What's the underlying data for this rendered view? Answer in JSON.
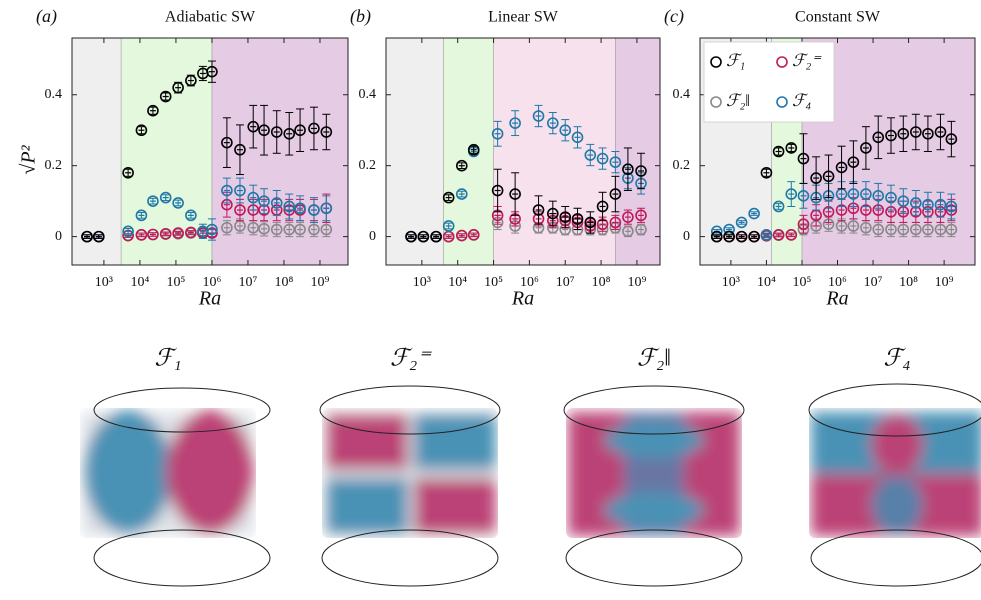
{
  "chart_data": [
    {
      "type": "scatter",
      "panel": "(a)",
      "title": "Adiabatic SW",
      "xlabel": "Ra",
      "ylabel": "√P²",
      "log_x": true,
      "xlim": [
        130,
        6000000000
      ],
      "ylim": [
        -0.08,
        0.56
      ],
      "xticks": [
        {
          "value": 1000,
          "label": "10³"
        },
        {
          "value": 10000,
          "label": "10⁴"
        },
        {
          "value": 100000,
          "label": "10⁵"
        },
        {
          "value": 1000000,
          "label": "10⁶"
        },
        {
          "value": 10000000,
          "label": "10⁷"
        },
        {
          "value": 100000000,
          "label": "10⁸"
        },
        {
          "value": 1000000000,
          "label": "10⁹"
        }
      ],
      "yticks": [
        0,
        0.2,
        0.4
      ],
      "regions": [
        {
          "from": 130,
          "to": 3000,
          "color": "#efefef"
        },
        {
          "from": 3000,
          "to": 1000000,
          "color": "#e3f8dc"
        },
        {
          "from": 1000000,
          "to": 6000000000,
          "color": "#e5cbe4"
        }
      ],
      "x": [
        340,
        720,
        4700,
        11000,
        23000,
        52000,
        115000,
        260000,
        560000,
        1000000,
        2600000,
        6000000,
        14000000,
        28000000,
        63000000,
        140000000,
        280000000,
        680000000,
        1500000000
      ],
      "series": [
        {
          "color": "#888888",
          "values": [
            0,
            0,
            0.003,
            0.005,
            0.006,
            0.007,
            0.008,
            0.01,
            0.01,
            0.01,
            0.025,
            0.03,
            0.025,
            0.022,
            0.02,
            0.02,
            0.02,
            0.02,
            0.02
          ],
          "errors": [
            0.005,
            0.005,
            0.005,
            0.005,
            0.005,
            0.005,
            0.005,
            0.005,
            0.008,
            0.01,
            0.02,
            0.02,
            0.02,
            0.02,
            0.02,
            0.02,
            0.02,
            0.02,
            0.02
          ]
        },
        {
          "color": "#c2185b",
          "values": [
            0,
            0,
            0.003,
            0.005,
            0.006,
            0.008,
            0.01,
            0.012,
            0.01,
            0.01,
            0.09,
            0.075,
            0.075,
            0.075,
            0.075,
            0.075,
            0.075,
            0.075,
            0.08
          ],
          "errors": [
            0.005,
            0.005,
            0.005,
            0.005,
            0.005,
            0.005,
            0.005,
            0.005,
            0.008,
            0.01,
            0.035,
            0.03,
            0.03,
            0.03,
            0.03,
            0.03,
            0.03,
            0.03,
            0.04
          ]
        },
        {
          "color": "#1f78a8",
          "values": [
            0,
            0,
            0.015,
            0.06,
            0.1,
            0.11,
            0.095,
            0.06,
            0.015,
            0.02,
            0.13,
            0.13,
            0.11,
            0.1,
            0.095,
            0.085,
            0.08,
            0.075,
            0.08
          ],
          "errors": [
            0.005,
            0.005,
            0.008,
            0.008,
            0.008,
            0.008,
            0.008,
            0.008,
            0.02,
            0.03,
            0.035,
            0.035,
            0.035,
            0.035,
            0.035,
            0.035,
            0.035,
            0.035,
            0.035
          ]
        },
        {
          "color": "#000000",
          "values": [
            0,
            0,
            0.18,
            0.3,
            0.355,
            0.395,
            0.42,
            0.44,
            0.46,
            0.465,
            0.265,
            0.245,
            0.31,
            0.3,
            0.295,
            0.29,
            0.3,
            0.305,
            0.295
          ],
          "errors": [
            0.005,
            0.005,
            0.01,
            0.01,
            0.01,
            0.01,
            0.015,
            0.015,
            0.02,
            0.03,
            0.07,
            0.07,
            0.06,
            0.07,
            0.06,
            0.06,
            0.06,
            0.06,
            0.05
          ]
        }
      ]
    },
    {
      "type": "scatter",
      "panel": "(b)",
      "title": "Linear SW",
      "xlabel": "Ra",
      "log_x": true,
      "xlim": [
        100,
        4400000000
      ],
      "ylim": [
        -0.08,
        0.56
      ],
      "xticks": [
        {
          "value": 1000,
          "label": "10³"
        },
        {
          "value": 10000,
          "label": "10⁴"
        },
        {
          "value": 100000,
          "label": "10⁵"
        },
        {
          "value": 1000000,
          "label": "10⁶"
        },
        {
          "value": 10000000,
          "label": "10⁷"
        },
        {
          "value": 100000000,
          "label": "10⁸"
        },
        {
          "value": 1000000000,
          "label": "10⁹"
        }
      ],
      "yticks": [
        0,
        0.2,
        0.4
      ],
      "regions": [
        {
          "from": 100,
          "to": 4000,
          "color": "#efefef"
        },
        {
          "from": 4000,
          "to": 100000,
          "color": "#e3f8dc"
        },
        {
          "from": 100000,
          "to": 250000000,
          "color": "#f6e1ec"
        },
        {
          "from": 250000000,
          "to": 4400000000,
          "color": "#e5cbe4"
        }
      ],
      "x": [
        500,
        1100,
        2500,
        5600,
        13000,
        28000,
        130000,
        400000,
        1800000,
        4500000,
        10000000,
        22000000,
        50000000,
        110000000,
        250000000,
        560000000,
        1300000000
      ],
      "series": [
        {
          "color": "#888888",
          "values": [
            0,
            0,
            0,
            0,
            0.003,
            0.005,
            0.04,
            0.03,
            0.025,
            0.025,
            0.02,
            0.02,
            0.02,
            0.02,
            0.025,
            0.015,
            0.02
          ],
          "errors": [
            0.005,
            0.005,
            0.005,
            0.005,
            0.005,
            0.005,
            0.02,
            0.02,
            0.015,
            0.015,
            0.015,
            0.015,
            0.015,
            0.015,
            0.015,
            0.015,
            0.015
          ]
        },
        {
          "color": "#c2185b",
          "values": [
            0,
            0,
            0,
            0,
            0.003,
            0.005,
            0.06,
            0.05,
            0.05,
            0.045,
            0.045,
            0.04,
            0.03,
            0.035,
            0.04,
            0.055,
            0.06
          ],
          "errors": [
            0.005,
            0.005,
            0.005,
            0.005,
            0.005,
            0.005,
            0.025,
            0.02,
            0.02,
            0.02,
            0.02,
            0.02,
            0.02,
            0.02,
            0.02,
            0.02,
            0.02
          ]
        },
        {
          "color": "#1f78a8",
          "values": [
            0,
            0,
            0,
            0.03,
            0.12,
            0.24,
            0.29,
            0.32,
            0.34,
            0.32,
            0.3,
            0.28,
            0.23,
            0.22,
            0.21,
            0.165,
            0.15
          ],
          "errors": [
            0.005,
            0.005,
            0.005,
            0.008,
            0.008,
            0.01,
            0.035,
            0.035,
            0.03,
            0.03,
            0.03,
            0.03,
            0.03,
            0.03,
            0.03,
            0.03,
            0.03
          ]
        },
        {
          "color": "#000000",
          "values": [
            0,
            0,
            0,
            0.11,
            0.2,
            0.245,
            0.13,
            0.12,
            0.075,
            0.065,
            0.055,
            0.05,
            0.04,
            0.085,
            0.12,
            0.19,
            0.185
          ],
          "errors": [
            0.005,
            0.005,
            0.005,
            0.008,
            0.008,
            0.01,
            0.06,
            0.06,
            0.04,
            0.035,
            0.03,
            0.03,
            0.03,
            0.04,
            0.05,
            0.06,
            0.05
          ]
        }
      ]
    },
    {
      "type": "scatter",
      "panel": "(c)",
      "title": "Constant SW",
      "xlabel": "Ra",
      "log_x": true,
      "legend": "upper left",
      "xlim": [
        135,
        7400000000
      ],
      "ylim": [
        -0.08,
        0.56
      ],
      "xticks": [
        {
          "value": 1000,
          "label": "10³"
        },
        {
          "value": 10000,
          "label": "10⁴"
        },
        {
          "value": 100000,
          "label": "10⁵"
        },
        {
          "value": 1000000,
          "label": "10⁶"
        },
        {
          "value": 10000000,
          "label": "10⁷"
        },
        {
          "value": 100000000,
          "label": "10⁸"
        },
        {
          "value": 1000000000,
          "label": "10⁹"
        }
      ],
      "yticks": [
        0,
        0.2,
        0.4
      ],
      "regions": [
        {
          "from": 135,
          "to": 14000,
          "color": "#efefef"
        },
        {
          "from": 14000,
          "to": 100000,
          "color": "#e3f8dc"
        },
        {
          "from": 100000,
          "to": 7400000000,
          "color": "#e5cbe4"
        }
      ],
      "x": [
        400,
        890,
        2000,
        4500,
        10000,
        22000,
        50000,
        110000,
        250000,
        560000,
        1300000,
        2800000,
        6300000,
        14000000,
        32000000,
        71000000,
        160000000,
        350000000,
        790000000,
        1600000000
      ],
      "series": [
        {
          "name": "ℱ₂‖",
          "color": "#888888",
          "values": [
            0,
            0,
            0,
            0,
            0.002,
            0.004,
            0.005,
            0.02,
            0.03,
            0.035,
            0.03,
            0.03,
            0.025,
            0.02,
            0.02,
            0.02,
            0.02,
            0.02,
            0.02,
            0.02
          ],
          "errors": [
            0.005,
            0.005,
            0.005,
            0.005,
            0.005,
            0.005,
            0.005,
            0.015,
            0.02,
            0.02,
            0.02,
            0.02,
            0.02,
            0.02,
            0.02,
            0.02,
            0.02,
            0.02,
            0.02,
            0.02
          ]
        },
        {
          "name": "ℱ₂⁼",
          "color": "#c2185b",
          "values": [
            0,
            0,
            0,
            0,
            0.003,
            0.005,
            0.005,
            0.035,
            0.06,
            0.07,
            0.075,
            0.08,
            0.075,
            0.075,
            0.07,
            0.07,
            0.07,
            0.07,
            0.07,
            0.075
          ],
          "errors": [
            0.005,
            0.005,
            0.005,
            0.005,
            0.005,
            0.005,
            0.005,
            0.025,
            0.03,
            0.03,
            0.03,
            0.03,
            0.03,
            0.03,
            0.03,
            0.03,
            0.03,
            0.03,
            0.03,
            0.03
          ]
        },
        {
          "name": "ℱ₄",
          "color": "#1f78a8",
          "values": [
            0.015,
            0.02,
            0.04,
            0.065,
            0.005,
            0.085,
            0.12,
            0.115,
            0.11,
            0.115,
            0.12,
            0.12,
            0.12,
            0.115,
            0.11,
            0.1,
            0.095,
            0.09,
            0.09,
            0.085
          ],
          "errors": [
            0.005,
            0.005,
            0.005,
            0.005,
            0.005,
            0.008,
            0.035,
            0.035,
            0.035,
            0.035,
            0.035,
            0.035,
            0.035,
            0.035,
            0.035,
            0.035,
            0.035,
            0.035,
            0.035,
            0.035
          ]
        },
        {
          "name": "ℱ₁",
          "color": "#000000",
          "values": [
            0,
            0,
            0,
            0,
            0.18,
            0.24,
            0.25,
            0.22,
            0.165,
            0.17,
            0.195,
            0.21,
            0.25,
            0.28,
            0.285,
            0.29,
            0.295,
            0.29,
            0.295,
            0.275
          ],
          "errors": [
            0.005,
            0.005,
            0.005,
            0.005,
            0.01,
            0.01,
            0.01,
            0.07,
            0.06,
            0.06,
            0.06,
            0.06,
            0.06,
            0.06,
            0.05,
            0.05,
            0.05,
            0.05,
            0.05,
            0.05
          ]
        }
      ]
    }
  ],
  "renderings": {
    "labels": [
      "ℱ₁",
      "ℱ₂⁼",
      "ℱ₂‖",
      "ℱ₄"
    ]
  }
}
